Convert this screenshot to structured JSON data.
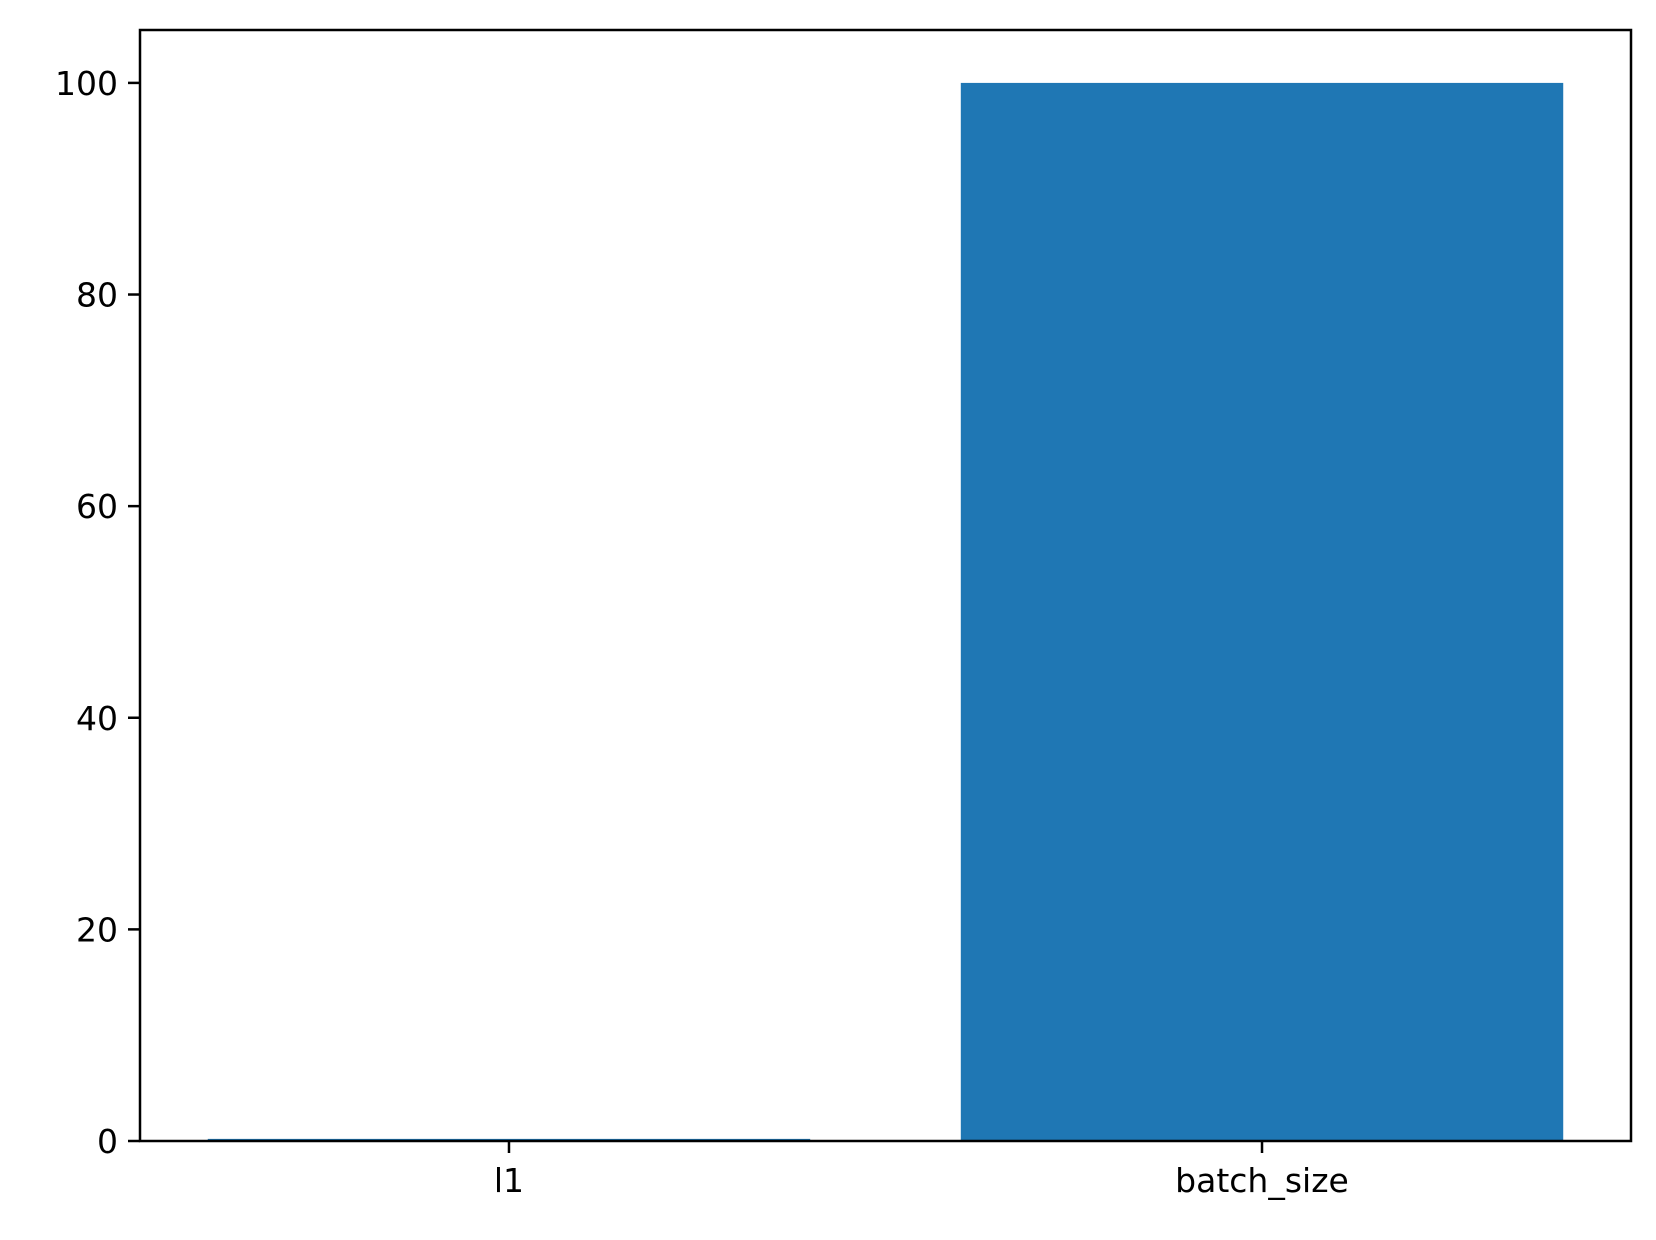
{
  "chart_data": {
    "type": "bar",
    "title": "",
    "xlabel": "",
    "ylabel": "",
    "categories": [
      "l1",
      "batch_size"
    ],
    "values": [
      0.2,
      100
    ],
    "ylim": [
      0,
      105
    ],
    "yticks": [
      0,
      20,
      40,
      60,
      80,
      100
    ],
    "ytick_labels": [
      "0",
      "20",
      "40",
      "60",
      "80",
      "100"
    ],
    "bar_color": "#1f77b4",
    "grid": false,
    "legend": false
  }
}
